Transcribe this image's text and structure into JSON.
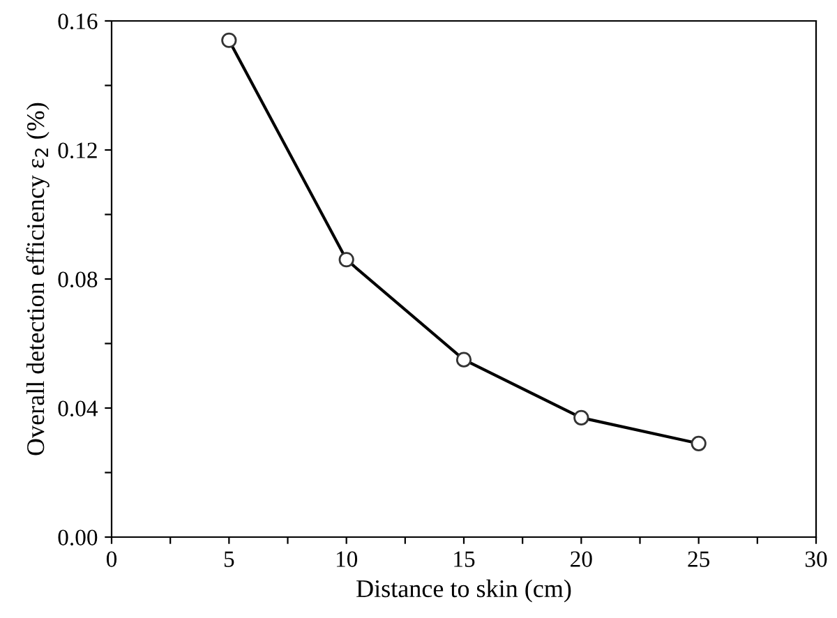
{
  "chart_data": {
    "type": "line",
    "xlabel": "Distance to skin (cm)",
    "ylabel": "Overall detection efficiency ε$_{2}$ (%)",
    "x": [
      5,
      10,
      15,
      20,
      25
    ],
    "series": [
      {
        "color": "#000000",
        "values": [
          0.154,
          0.086,
          0.055,
          0.037,
          0.029
        ]
      }
    ],
    "xlim": [
      0,
      30
    ],
    "xticks": [
      0,
      {
        "value": 2.5,
        "label": null
      },
      5,
      {
        "value": 7.5,
        "label": null
      },
      10,
      {
        "value": 12.5,
        "label": null
      },
      15,
      {
        "value": 17.5,
        "label": null
      },
      20,
      {
        "value": 22.5,
        "label": null
      },
      25,
      {
        "value": 27.5,
        "label": null
      },
      30
    ],
    "ylim": [
      0,
      0.16
    ],
    "yticks": [
      {
        "value": 0,
        "label": "0.00"
      },
      {
        "value": 0.02,
        "label": null
      },
      {
        "value": 0.04,
        "label": "0.04"
      },
      {
        "value": 0.06,
        "label": null
      },
      {
        "value": 0.08,
        "label": "0.08"
      },
      {
        "value": 0.1,
        "label": null
      },
      {
        "value": 0.12,
        "label": "0.12"
      },
      {
        "value": 0.14,
        "label": null
      },
      {
        "value": 0.16,
        "label": "0.16"
      }
    ],
    "marker": "circle",
    "line_style": "solid",
    "grid": false,
    "legend": false
  }
}
